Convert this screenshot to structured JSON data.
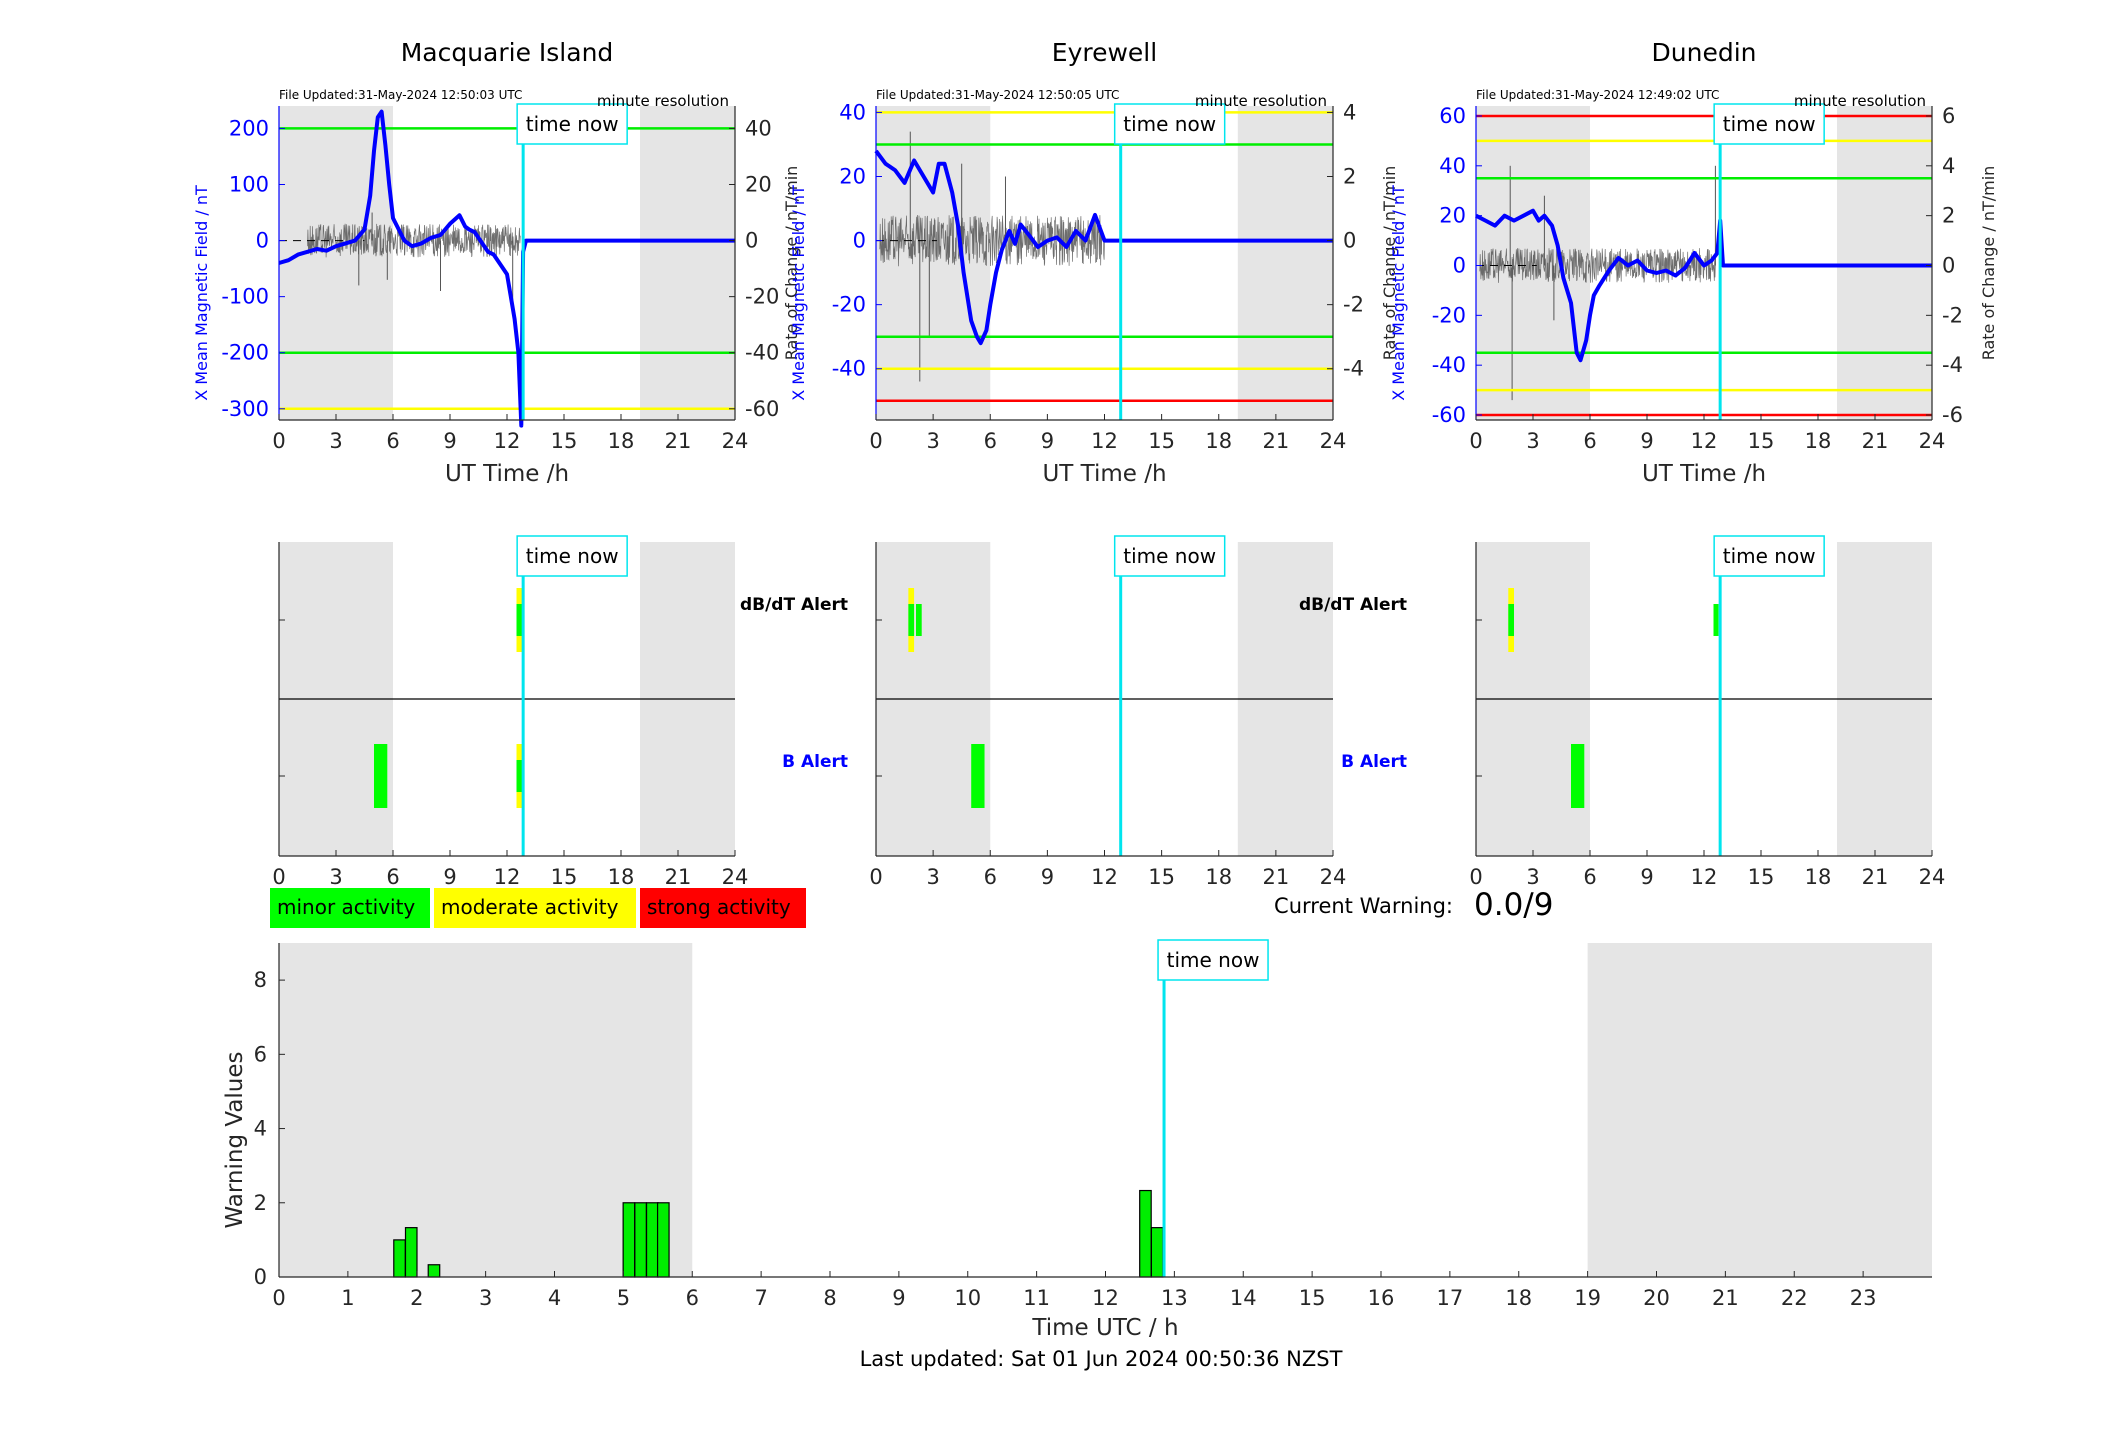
{
  "colors": {
    "shade": "#e5e5e5",
    "field_line": "#0000ff",
    "rate_line": "#555555",
    "now_line": "#00e5ee",
    "green": "#00ee00",
    "yellow": "#ffff00",
    "red": "#ff0000",
    "axis": "#262626"
  },
  "legend": [
    {
      "label": "minor activity",
      "color": "#00ff00"
    },
    {
      "label": "moderate activity",
      "color": "#ffff00"
    },
    {
      "label": "strong activity",
      "color": "#ff0000"
    }
  ],
  "current_warning": {
    "label": "Current Warning:",
    "value": "0.0/9"
  },
  "time_now_label": "time now",
  "footer": "Last updated: Sat 01 Jun 2024 00:50:36 NZST",
  "alert_labels": {
    "dbdt": "dB/dT Alert",
    "b": "B Alert"
  },
  "chart_data": [
    {
      "type": "line",
      "id": "mqi",
      "title": "Macquarie Island",
      "file_updated": "File Updated:31-May-2024 12:50:03 UTC",
      "resolution": "minute resolution",
      "xlabel": "UT Time /h",
      "ylabel_left": "X Mean Magnetic Field / nT",
      "ylabel_right": "Rate of Change / nT/min",
      "xlim": [
        0,
        24
      ],
      "xticks": [
        0,
        3,
        6,
        9,
        12,
        15,
        18,
        21,
        24
      ],
      "ylim_left": [
        -320,
        240
      ],
      "yticks_left": [
        -300,
        -200,
        -100,
        0,
        100,
        200
      ],
      "ylim_right": [
        -64,
        48
      ],
      "yticks_right": [
        -60,
        -40,
        -20,
        0,
        20,
        40
      ],
      "night_shading_h": [
        [
          0,
          6
        ],
        [
          19,
          24
        ]
      ],
      "time_now_h": 12.85,
      "thresholds": [
        {
          "value": 200,
          "color": "green"
        },
        {
          "value": -200,
          "color": "green"
        },
        {
          "value": -300,
          "color": "yellow"
        }
      ],
      "field_series": {
        "name": "X Mean Magnetic Field",
        "x": [
          0,
          0.5,
          1,
          1.5,
          2,
          2.5,
          3,
          3.5,
          4,
          4.5,
          4.8,
          5,
          5.2,
          5.4,
          5.6,
          5.8,
          6,
          6.3,
          6.6,
          7,
          7.5,
          8,
          8.5,
          9,
          9.5,
          9.8,
          10,
          10.3,
          10.6,
          11,
          11.3,
          11.6,
          12,
          12.2,
          12.4,
          12.6,
          12.75,
          12.85,
          13,
          15,
          18,
          21,
          24
        ],
        "y": [
          -40,
          -35,
          -25,
          -20,
          -15,
          -18,
          -10,
          -5,
          0,
          20,
          80,
          160,
          220,
          230,
          170,
          100,
          40,
          20,
          0,
          -10,
          -5,
          5,
          10,
          30,
          45,
          25,
          20,
          15,
          0,
          -20,
          -25,
          -40,
          -60,
          -100,
          -140,
          -200,
          -330,
          -20,
          0,
          0,
          0,
          0,
          0
        ]
      },
      "rate_series": {
        "name": "Rate of Change",
        "x_start": 1.5,
        "x_end": 12.7,
        "amplitude": 6,
        "spikes": [
          {
            "x": 4.2,
            "y": -16
          },
          {
            "x": 4.9,
            "y": 10
          },
          {
            "x": 5.7,
            "y": -14
          },
          {
            "x": 8.5,
            "y": -18
          },
          {
            "x": 12.3,
            "y": -22
          }
        ]
      }
    },
    {
      "type": "line",
      "id": "eyr",
      "title": "Eyrewell",
      "file_updated": "File Updated:31-May-2024 12:50:05 UTC",
      "resolution": "minute resolution",
      "xlabel": "UT Time /h",
      "ylabel_left": "X Mean Magnetic Field / nT",
      "ylabel_right": "Rate of Change / nT/min",
      "xlim": [
        0,
        24
      ],
      "xticks": [
        0,
        3,
        6,
        9,
        12,
        15,
        18,
        21,
        24
      ],
      "ylim_left": [
        -56,
        42
      ],
      "yticks_left": [
        -40,
        -20,
        0,
        20,
        40
      ],
      "ylim_right": [
        -5.6,
        4.2
      ],
      "yticks_right": [
        -4,
        -2,
        0,
        2,
        4
      ],
      "night_shading_h": [
        [
          0,
          6
        ],
        [
          19,
          24
        ]
      ],
      "time_now_h": 12.85,
      "thresholds": [
        {
          "value": 40,
          "color": "yellow"
        },
        {
          "value": 30,
          "color": "green"
        },
        {
          "value": -30,
          "color": "green"
        },
        {
          "value": -40,
          "color": "yellow"
        },
        {
          "value": -50,
          "color": "red"
        }
      ],
      "field_series": {
        "name": "X Mean Magnetic Field",
        "x": [
          0,
          0.5,
          1,
          1.5,
          2,
          2.5,
          3,
          3.3,
          3.6,
          4,
          4.3,
          4.6,
          5,
          5.3,
          5.5,
          5.8,
          6,
          6.3,
          6.6,
          7,
          7.3,
          7.6,
          8,
          8.5,
          9,
          9.5,
          10,
          10.5,
          11,
          11.5,
          12,
          12.3,
          15,
          18,
          21,
          24
        ],
        "y": [
          28,
          24,
          22,
          18,
          25,
          20,
          15,
          24,
          24,
          15,
          5,
          -10,
          -25,
          -30,
          -32,
          -28,
          -20,
          -10,
          -3,
          3,
          -1,
          5,
          2,
          -2,
          0,
          1,
          -2,
          3,
          0,
          8,
          0,
          0,
          0,
          0,
          0,
          0
        ]
      },
      "rate_series": {
        "name": "Rate of Change",
        "x_start": 0.2,
        "x_end": 12,
        "amplitude": 0.8,
        "spikes": [
          {
            "x": 1.8,
            "y": 3.4
          },
          {
            "x": 2.3,
            "y": -4.4
          },
          {
            "x": 2.8,
            "y": -3
          },
          {
            "x": 4.5,
            "y": 2.4
          },
          {
            "x": 6.8,
            "y": 2
          }
        ]
      }
    },
    {
      "type": "line",
      "id": "dun",
      "title": "Dunedin",
      "file_updated": "File Updated:31-May-2024 12:49:02 UTC",
      "resolution": "minute resolution",
      "xlabel": "UT Time /h",
      "ylabel_left": "X Mean Magnetic Field / nT",
      "ylabel_right": "Rate of Change / nT/min",
      "xlim": [
        0,
        24
      ],
      "xticks": [
        0,
        3,
        6,
        9,
        12,
        15,
        18,
        21,
        24
      ],
      "ylim_left": [
        -62,
        64
      ],
      "yticks_left": [
        -60,
        -40,
        -20,
        0,
        20,
        40,
        60
      ],
      "ylim_right": [
        -6.2,
        6.4
      ],
      "yticks_right": [
        -6,
        -4,
        -2,
        0,
        2,
        4,
        6
      ],
      "night_shading_h": [
        [
          0,
          6
        ],
        [
          19,
          24
        ]
      ],
      "time_now_h": 12.85,
      "thresholds": [
        {
          "value": 60,
          "color": "red"
        },
        {
          "value": 50,
          "color": "yellow"
        },
        {
          "value": 35,
          "color": "green"
        },
        {
          "value": -35,
          "color": "green"
        },
        {
          "value": -50,
          "color": "yellow"
        },
        {
          "value": -60,
          "color": "red"
        }
      ],
      "field_series": {
        "name": "X Mean Magnetic Field",
        "x": [
          0,
          0.5,
          1,
          1.5,
          2,
          2.5,
          3,
          3.3,
          3.6,
          4,
          4.3,
          4.6,
          5,
          5.3,
          5.5,
          5.8,
          6,
          6.2,
          6.5,
          7,
          7.5,
          8,
          8.5,
          9,
          9.5,
          10,
          10.5,
          11,
          11.5,
          12,
          12.4,
          12.7,
          12.85,
          13,
          15,
          18,
          21,
          24
        ],
        "y": [
          20,
          18,
          16,
          20,
          18,
          20,
          22,
          18,
          20,
          16,
          8,
          -5,
          -15,
          -35,
          -38,
          -30,
          -20,
          -12,
          -8,
          -2,
          3,
          0,
          2,
          -2,
          -3,
          -2,
          -4,
          -1,
          5,
          0,
          2,
          5,
          18,
          0,
          0,
          0,
          0,
          0
        ]
      },
      "rate_series": {
        "name": "Rate of Change",
        "x_start": 0.2,
        "x_end": 12.6,
        "amplitude": 0.7,
        "spikes": [
          {
            "x": 1.8,
            "y": 4
          },
          {
            "x": 1.9,
            "y": -5.4
          },
          {
            "x": 3.6,
            "y": 2.8
          },
          {
            "x": 4.1,
            "y": -2.2
          },
          {
            "x": 12.6,
            "y": 4
          }
        ]
      }
    },
    {
      "type": "heatmap",
      "id": "mqi-alerts",
      "xlim": [
        0,
        24
      ],
      "xticks": [
        0,
        3,
        6,
        9,
        12,
        15,
        18,
        21,
        24
      ],
      "night_shading_h": [
        [
          0,
          6
        ],
        [
          19,
          24
        ]
      ],
      "time_now_h": 12.85,
      "show_labels": true,
      "dbdt": [
        {
          "x0": 12.5,
          "x1": 12.85,
          "level": "moderate"
        },
        {
          "x0": 12.5,
          "x1": 12.85,
          "level": "minor",
          "inner": true
        }
      ],
      "b": [
        {
          "x0": 5.0,
          "x1": 5.7,
          "level": "minor"
        },
        {
          "x0": 12.5,
          "x1": 12.85,
          "level": "moderate"
        },
        {
          "x0": 12.5,
          "x1": 12.85,
          "level": "minor",
          "inner": true
        }
      ]
    },
    {
      "type": "heatmap",
      "id": "eyr-alerts",
      "xlim": [
        0,
        24
      ],
      "xticks": [
        0,
        3,
        6,
        9,
        12,
        15,
        18,
        21,
        24
      ],
      "night_shading_h": [
        [
          0,
          6
        ],
        [
          19,
          24
        ]
      ],
      "time_now_h": 12.85,
      "show_labels": true,
      "dbdt": [
        {
          "x0": 1.7,
          "x1": 2.0,
          "level": "moderate"
        },
        {
          "x0": 1.7,
          "x1": 2.0,
          "level": "minor",
          "inner": true
        },
        {
          "x0": 2.1,
          "x1": 2.4,
          "level": "minor",
          "inner": true
        }
      ],
      "b": [
        {
          "x0": 5.0,
          "x1": 5.7,
          "level": "minor"
        }
      ]
    },
    {
      "type": "heatmap",
      "id": "dun-alerts",
      "xlim": [
        0,
        24
      ],
      "xticks": [
        0,
        3,
        6,
        9,
        12,
        15,
        18,
        21,
        24
      ],
      "night_shading_h": [
        [
          0,
          6
        ],
        [
          19,
          24
        ]
      ],
      "time_now_h": 12.85,
      "show_labels": false,
      "dbdt": [
        {
          "x0": 1.7,
          "x1": 2.0,
          "level": "moderate"
        },
        {
          "x0": 1.7,
          "x1": 2.0,
          "level": "minor",
          "inner": true
        },
        {
          "x0": 12.5,
          "x1": 12.75,
          "level": "minor",
          "inner": true
        }
      ],
      "b": [
        {
          "x0": 5.0,
          "x1": 5.7,
          "level": "minor"
        }
      ]
    },
    {
      "type": "bar",
      "id": "warning-values",
      "xlabel": "Time UTC / h",
      "ylabel": "Warning Values",
      "xlim": [
        0,
        24
      ],
      "xticks": [
        0,
        1,
        2,
        3,
        4,
        5,
        6,
        7,
        8,
        9,
        10,
        11,
        12,
        13,
        14,
        15,
        16,
        17,
        18,
        19,
        20,
        21,
        22,
        23
      ],
      "ylim": [
        0,
        9
      ],
      "yticks": [
        0,
        2,
        4,
        6,
        8
      ],
      "night_shading_h": [
        [
          0,
          6
        ],
        [
          19,
          24
        ]
      ],
      "time_now_h": 12.85,
      "bar_width_h": 0.167,
      "x": [
        1.75,
        1.92,
        2.25,
        5.08,
        5.25,
        5.42,
        5.58,
        12.58,
        12.75
      ],
      "values": [
        1.0,
        1.33,
        0.33,
        2.0,
        2.0,
        2.0,
        2.0,
        2.33,
        1.33
      ]
    }
  ]
}
